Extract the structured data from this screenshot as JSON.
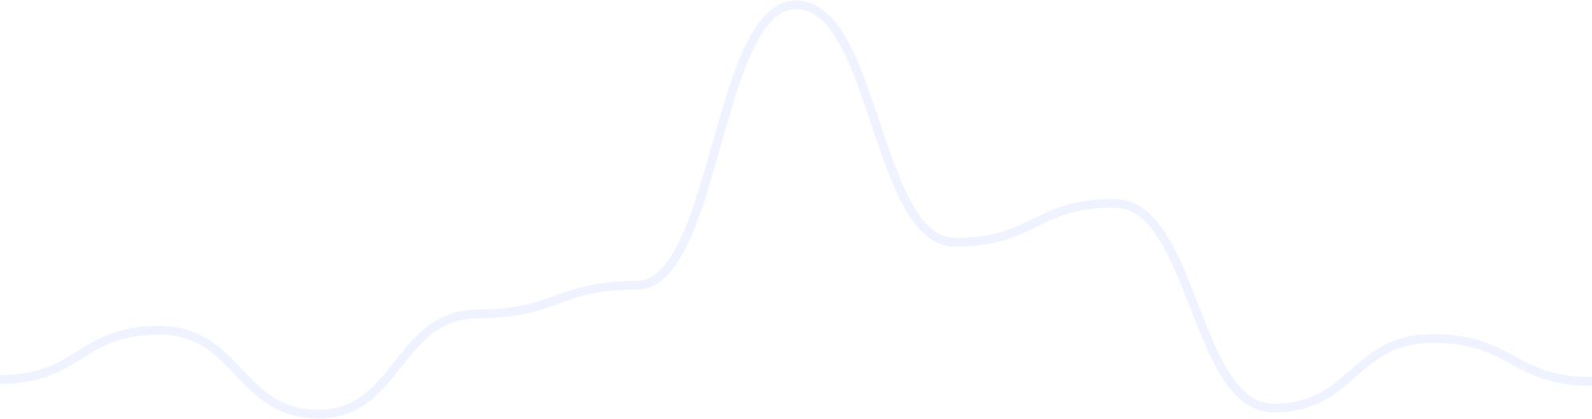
{
  "chart_data": {
    "type": "line",
    "x": [
      -0.5,
      1,
      2.5,
      4,
      5.5,
      7,
      8.5,
      10,
      11.5,
      13,
      14.5
    ],
    "series": [
      {
        "values": [
          0.17,
          0.41,
          0.0,
          0.49,
          0.63,
          2.0,
          0.84,
          1.03,
          0.03,
          0.37,
          0.16
        ],
        "color": "#EEF3FF"
      }
    ],
    "xlim": [
      -0.5,
      14.5
    ],
    "ylim": [
      0.0,
      2.0
    ],
    "grid": false,
    "axes_visible": false,
    "smooth": true
  }
}
